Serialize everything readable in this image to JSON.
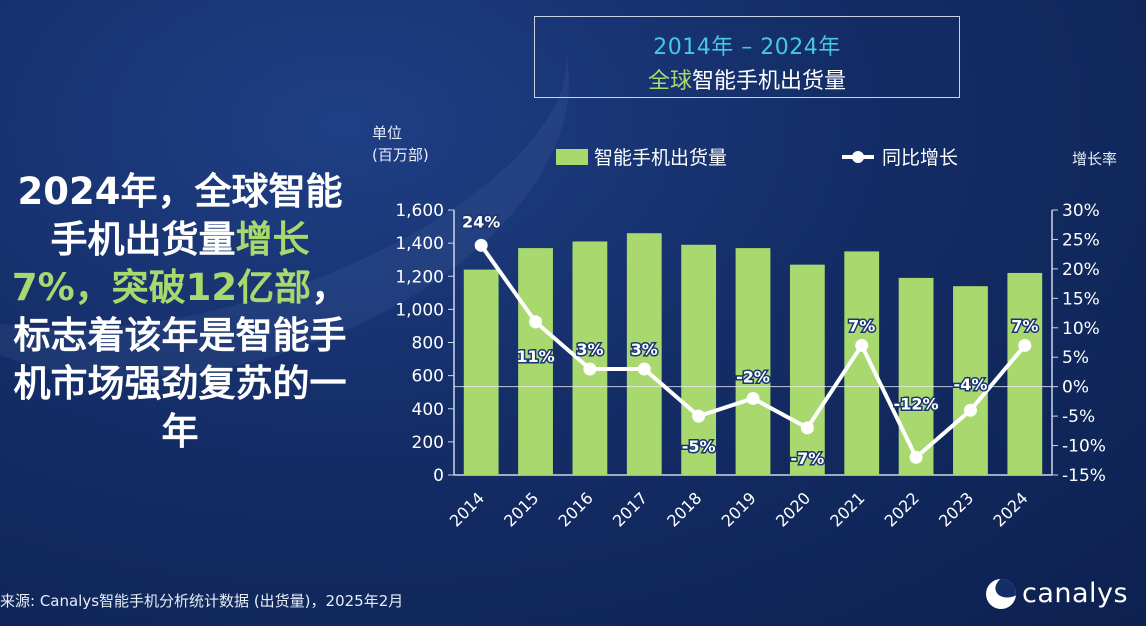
{
  "title": {
    "line1": "2014年 – 2024年",
    "line2_highlight": "全球",
    "line2_rest": "智能手机出货量"
  },
  "headline": {
    "part1": "2024年，",
    "part2": "全球智能手机出货量",
    "part3_highlight": "增长7%，突破12亿部",
    "part4": "，标志着该年是智能手机市场强劲复苏的一年"
  },
  "unit_label": [
    "单位",
    "(百万部)"
  ],
  "rate_label": "增长率",
  "legend": {
    "bar": "智能手机出货量",
    "line": "同比增长"
  },
  "source": "来源: Canalys智能手机分析统计数据 (出货量)，2025年2月",
  "logo": "canalys",
  "colors": {
    "bar": "#a8d86e",
    "line": "#ffffff",
    "accent_green": "#a8d86e",
    "accent_cyan": "#46c9e0"
  },
  "chart_data": {
    "type": "bar",
    "categories": [
      "2014",
      "2015",
      "2016",
      "2017",
      "2018",
      "2019",
      "2020",
      "2021",
      "2022",
      "2023",
      "2024"
    ],
    "series": [
      {
        "name": "智能手机出货量",
        "type": "bar",
        "axis": "left",
        "values": [
          1240,
          1370,
          1410,
          1460,
          1390,
          1370,
          1270,
          1350,
          1190,
          1140,
          1220
        ]
      },
      {
        "name": "同比增长",
        "type": "line",
        "axis": "right",
        "values": [
          24,
          11,
          3,
          3,
          -5,
          -2,
          -7,
          7,
          -12,
          -4,
          7
        ],
        "labels": [
          "24%",
          "11%",
          "3%",
          "3%",
          "-5%",
          "-2%",
          "-7%",
          "7%",
          "-12%",
          "-4%",
          "7%"
        ]
      }
    ],
    "y_left": {
      "min": 0,
      "max": 1600,
      "step": 200,
      "ticks": [
        "0",
        "200",
        "400",
        "600",
        "800",
        "1,000",
        "1,200",
        "1,400",
        "1,600"
      ]
    },
    "y_right": {
      "min": -15,
      "max": 30,
      "step": 5,
      "ticks": [
        "-15%",
        "-10%",
        "-5%",
        "0%",
        "5%",
        "10%",
        "15%",
        "20%",
        "25%",
        "30%"
      ]
    },
    "grid": false,
    "zero_reference_line": true
  }
}
